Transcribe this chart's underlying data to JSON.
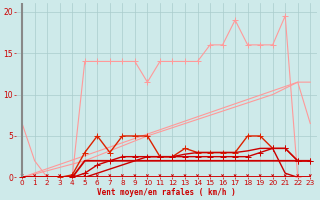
{
  "bg_color": "#ceeaea",
  "grid_color": "#aacccc",
  "xlabel": "Vent moyen/en rafales ( km/h )",
  "ylabel_ticks": [
    0,
    5,
    10,
    15,
    20
  ],
  "xlim": [
    -0.5,
    23.5
  ],
  "ylim": [
    0,
    21
  ],
  "x_ticks": [
    0,
    1,
    2,
    3,
    4,
    5,
    6,
    7,
    8,
    9,
    10,
    11,
    12,
    13,
    14,
    15,
    16,
    17,
    18,
    19,
    20,
    21,
    22,
    23
  ],
  "series": [
    {
      "x": [
        0,
        4,
        5,
        6,
        7,
        8,
        9,
        10,
        11,
        12,
        13,
        14,
        15,
        16,
        17,
        18,
        19,
        20,
        21,
        22
      ],
      "y": [
        0,
        0,
        14,
        14,
        14,
        14,
        14,
        11.5,
        14,
        14,
        14,
        14,
        16,
        16,
        19,
        16,
        16,
        16,
        19.5,
        0
      ],
      "color": "#ff9999",
      "marker": "+",
      "lw": 0.8,
      "ms": 4
    },
    {
      "x": [
        0,
        22,
        23
      ],
      "y": [
        0,
        11.5,
        6.5
      ],
      "color": "#ff9999",
      "marker": null,
      "lw": 0.8,
      "ms": 0
    },
    {
      "x": [
        0,
        1,
        2
      ],
      "y": [
        6.5,
        2,
        0
      ],
      "color": "#ff9999",
      "marker": null,
      "lw": 0.8,
      "ms": 0
    },
    {
      "x": [
        0,
        5,
        10,
        15,
        20,
        22,
        23
      ],
      "y": [
        0,
        2,
        5,
        7.5,
        10,
        11.5,
        11.5
      ],
      "color": "#ff9999",
      "marker": null,
      "lw": 0.8,
      "ms": 0
    },
    {
      "x": [
        3,
        4,
        5,
        6,
        7,
        8,
        9,
        10,
        11,
        12,
        13,
        14,
        15,
        16,
        17,
        18,
        19,
        20,
        21,
        22,
        23
      ],
      "y": [
        0,
        0.3,
        3.0,
        5.0,
        3.0,
        5.0,
        5.0,
        5.0,
        2.5,
        2.5,
        3.5,
        3.0,
        3.0,
        3.0,
        3.0,
        5.0,
        5.0,
        3.5,
        3.5,
        2.0,
        2.0
      ],
      "color": "#dd2200",
      "marker": "+",
      "lw": 1.0,
      "ms": 4
    },
    {
      "x": [
        0,
        4,
        5,
        6,
        7,
        8,
        9,
        10,
        11,
        12,
        13,
        14,
        15,
        16,
        17,
        18,
        19,
        20,
        21,
        22,
        23
      ],
      "y": [
        0,
        0,
        2.0,
        2.0,
        2.0,
        2.0,
        2.0,
        2.0,
        2.0,
        2.0,
        2.0,
        2.0,
        2.0,
        2.0,
        2.0,
        2.0,
        2.0,
        2.0,
        2.0,
        2.0,
        2.0
      ],
      "color": "#cc0000",
      "marker": null,
      "lw": 1.3,
      "ms": 0
    },
    {
      "x": [
        0,
        4,
        5,
        6,
        7,
        8,
        9,
        10,
        11,
        12,
        13,
        14,
        15,
        16,
        17,
        18,
        19,
        20,
        21,
        22,
        23
      ],
      "y": [
        0,
        0,
        0.5,
        1.5,
        2.0,
        2.5,
        2.5,
        2.5,
        2.5,
        2.5,
        2.5,
        2.5,
        2.5,
        2.5,
        2.5,
        2.5,
        3.0,
        3.5,
        3.5,
        2.0,
        2.0
      ],
      "color": "#cc0000",
      "marker": "+",
      "lw": 1.0,
      "ms": 4
    },
    {
      "x": [
        0,
        23
      ],
      "y": [
        0,
        0
      ],
      "color": "#cc0000",
      "marker": null,
      "lw": 1.3,
      "ms": 0
    },
    {
      "x": [
        0,
        4,
        5,
        6,
        7,
        8,
        9,
        10,
        11,
        12,
        13,
        14,
        15,
        16,
        17,
        18,
        19,
        20,
        21,
        22,
        23
      ],
      "y": [
        0,
        0,
        0,
        0.5,
        1.0,
        1.5,
        2.0,
        2.5,
        2.5,
        2.5,
        2.8,
        3.0,
        3.0,
        3.0,
        3.0,
        3.2,
        3.5,
        3.5,
        0.5,
        0,
        0
      ],
      "color": "#cc0000",
      "marker": null,
      "lw": 1.0,
      "ms": 0
    }
  ],
  "arrow_color": "#cc0000",
  "left_line_color": "#888888"
}
